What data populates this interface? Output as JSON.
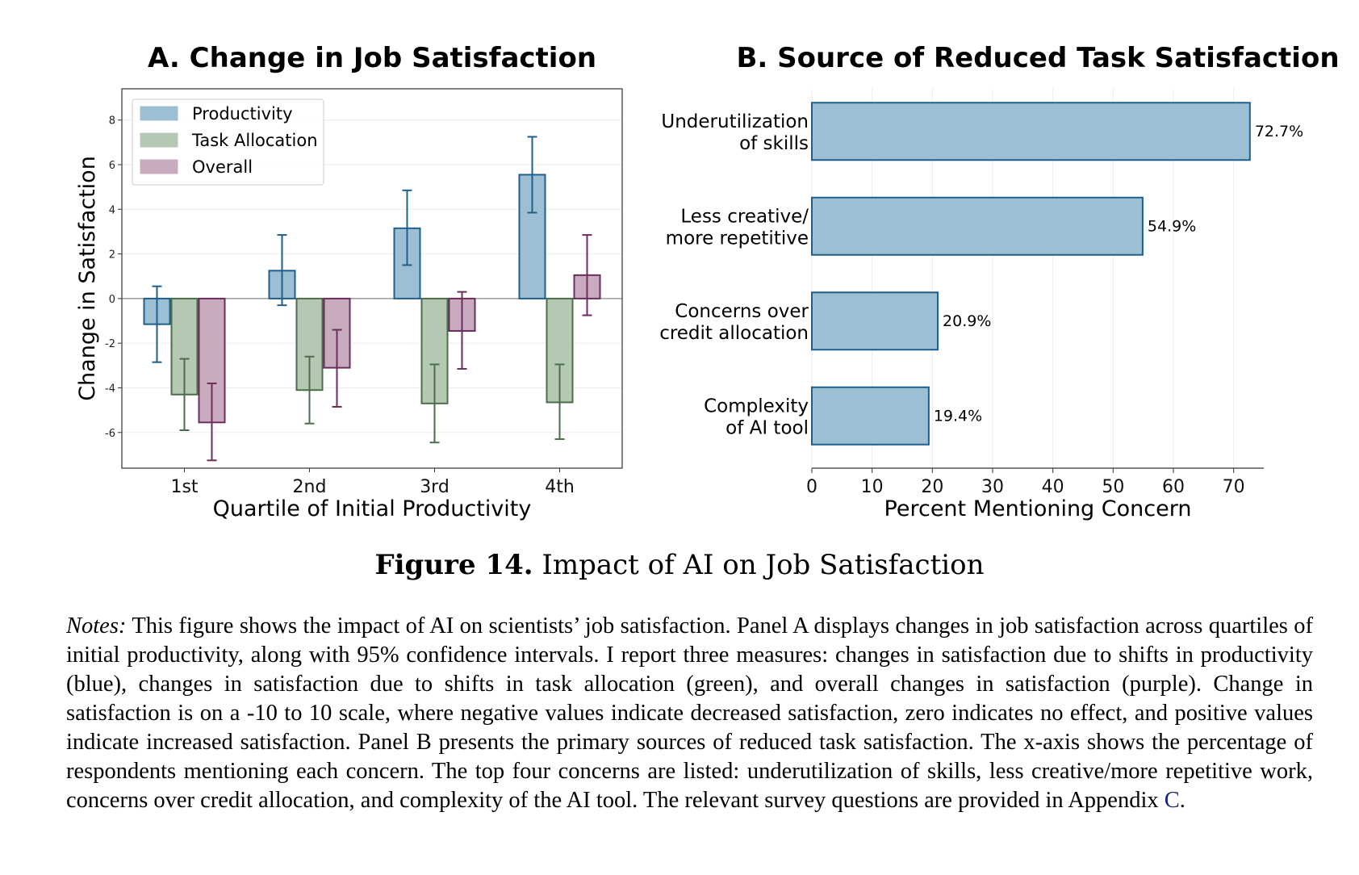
{
  "chart_data": [
    {
      "type": "bar",
      "title": "A. Change in Job Satisfaction",
      "xlabel": "Quartile of Initial Productivity",
      "ylabel": "Change in Satisfaction",
      "categories": [
        "1st",
        "2nd",
        "3rd",
        "4th"
      ],
      "ylim": [
        -7.6,
        9.4
      ],
      "yticks": [
        -6,
        -4,
        -2,
        0,
        2,
        4,
        6,
        8
      ],
      "legend_position": "top-left",
      "series": [
        {
          "name": "Productivity",
          "values": [
            -1.15,
            1.25,
            3.15,
            5.55
          ],
          "ci_low": [
            -2.85,
            -0.3,
            1.5,
            3.85
          ],
          "ci_high": [
            0.55,
            2.85,
            4.85,
            7.25
          ],
          "fill": "#9dbfd4",
          "stroke": "#1f5f8b"
        },
        {
          "name": "Task Allocation",
          "values": [
            -4.3,
            -4.1,
            -4.7,
            -4.65
          ],
          "ci_low": [
            -5.9,
            -5.6,
            -6.45,
            -6.3
          ],
          "ci_high": [
            -2.7,
            -2.6,
            -2.95,
            -2.95
          ],
          "fill": "#b5c8b3",
          "stroke": "#4a6e4a"
        },
        {
          "name": "Overall",
          "values": [
            -5.55,
            -3.1,
            -1.45,
            1.05
          ],
          "ci_low": [
            -7.25,
            -4.85,
            -3.15,
            -0.75
          ],
          "ci_high": [
            -3.8,
            -1.4,
            0.3,
            2.85
          ],
          "fill": "#c9abbf",
          "stroke": "#6b2d5c"
        }
      ]
    },
    {
      "type": "bar",
      "orientation": "horizontal",
      "title": "B. Source of Reduced Task Satisfaction",
      "xlabel": "Percent Mentioning Concern",
      "ylabel": "",
      "categories": [
        [
          "Underutilization",
          "of skills"
        ],
        [
          "Less creative/",
          "more repetitive"
        ],
        [
          "Concerns over",
          "credit allocation"
        ],
        [
          "Complexity",
          "of AI tool"
        ]
      ],
      "values": [
        72.7,
        54.9,
        20.9,
        19.4
      ],
      "data_labels": [
        "72.7%",
        "54.9%",
        "20.9%",
        "19.4%"
      ],
      "xlim": [
        0,
        75
      ],
      "xticks": [
        0,
        10,
        20,
        30,
        40,
        50,
        60,
        70
      ],
      "fill": "#9dbfd4",
      "stroke": "#1f5f8b"
    }
  ],
  "caption": {
    "label": "Figure 14.",
    "text": "Impact of AI on Job Satisfaction"
  },
  "notes": {
    "label": "Notes:",
    "text": "This figure shows the impact of AI on scientists’ job satisfaction. Panel A displays changes in job satisfaction across quartiles of initial productivity, along with 95% confidence intervals. I report three measures: changes in satisfaction due to shifts in productivity (blue), changes in satisfaction due to shifts in task allocation (green), and overall changes in satisfaction (purple). Change in satisfaction is on a -10 to 10 scale, where negative values indicate decreased satisfaction, zero indicates no effect, and positive values indicate increased satisfaction. Panel B presents the primary sources of reduced task satisfaction. The x-axis shows the percentage of respondents mentioning each concern. The top four concerns are listed: underutilization of skills, less creative/more repetitive work, concerns over credit allocation, and complexity of the AI tool. The relevant survey questions are provided in Appendix",
    "link": "C",
    "end": "."
  }
}
